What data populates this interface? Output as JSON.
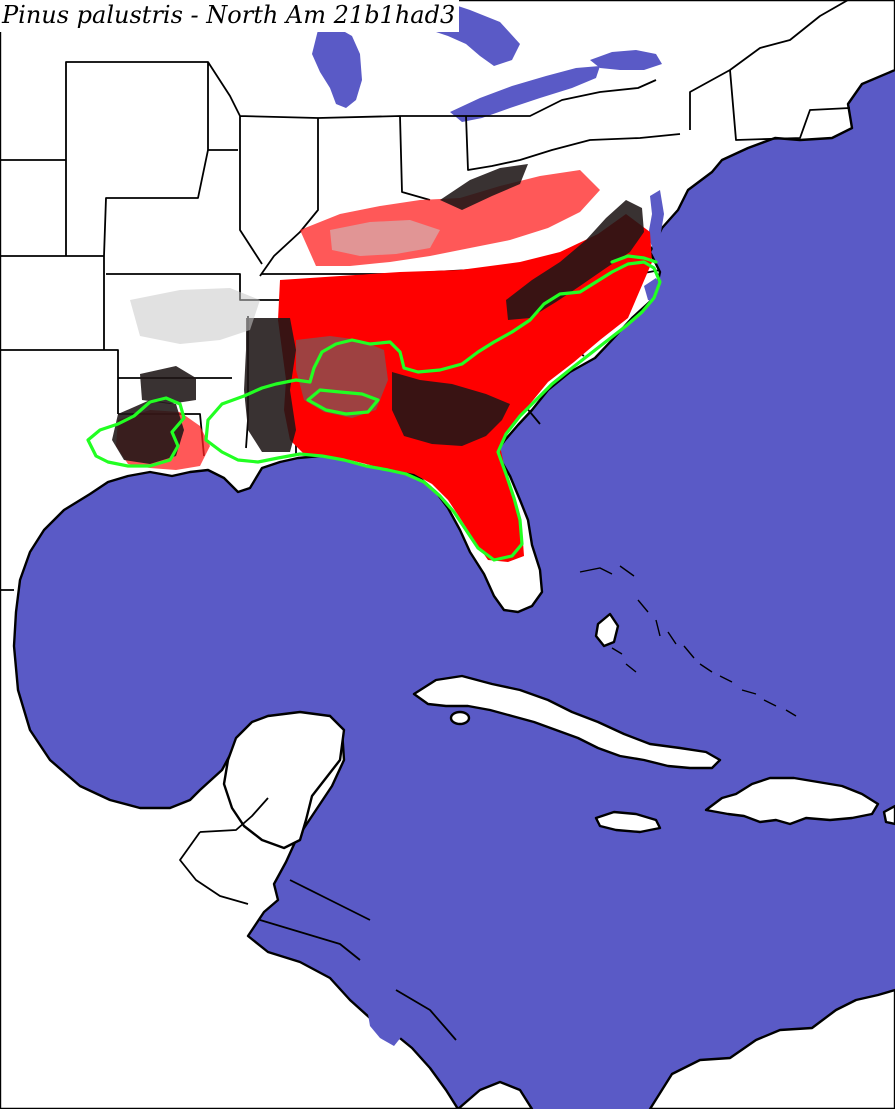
{
  "map": {
    "title": "Pinus palustris - North Am 21b1had3",
    "colors": {
      "ocean": "#5a5ac6",
      "land": "#ffffff",
      "predicted_habitat": "#ff0000",
      "dense_habitat": "#1e1616",
      "marginal_habitat": "#6a6464",
      "native_range_outline": "#22ff22",
      "borders": "#000000"
    }
  }
}
